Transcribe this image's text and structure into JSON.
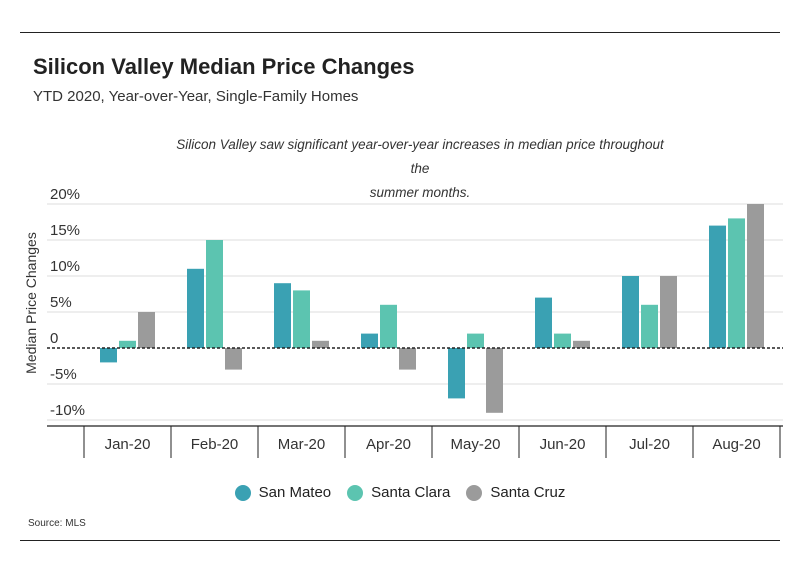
{
  "title": "Silicon Valley Median Price Changes",
  "subtitle": "YTD 2020, Year-over-Year, Single-Family Homes",
  "annotation_line1": "Silicon Valley saw significant year-over-year increases in median price throughout the",
  "annotation_line2": "summer months.",
  "source": "Source:  MLS",
  "chart_data": {
    "type": "bar",
    "categories": [
      "Jan-20",
      "Feb-20",
      "Mar-20",
      "Apr-20",
      "May-20",
      "Jun-20",
      "Jul-20",
      "Aug-20"
    ],
    "series": [
      {
        "name": "San Mateo",
        "color": "#3aa1b3",
        "values": [
          -2,
          11,
          9,
          2,
          -7,
          7,
          10,
          17
        ]
      },
      {
        "name": "Santa Clara",
        "color": "#5cc4b0",
        "values": [
          1,
          15,
          8,
          6,
          2,
          2,
          6,
          18
        ]
      },
      {
        "name": "Santa Cruz",
        "color": "#9b9b9b",
        "values": [
          5,
          -3,
          1,
          -3,
          -9,
          1,
          10,
          20
        ]
      }
    ],
    "ylabel": "Median Price Changes",
    "ylim": [
      -10,
      20
    ],
    "yticks": [
      20,
      15,
      10,
      5,
      0,
      -5,
      -10
    ],
    "ytick_labels": [
      "20%",
      "15%",
      "10%",
      "5%",
      "0",
      "-5%",
      "-10%"
    ],
    "grid": true,
    "legend": "bottom"
  }
}
